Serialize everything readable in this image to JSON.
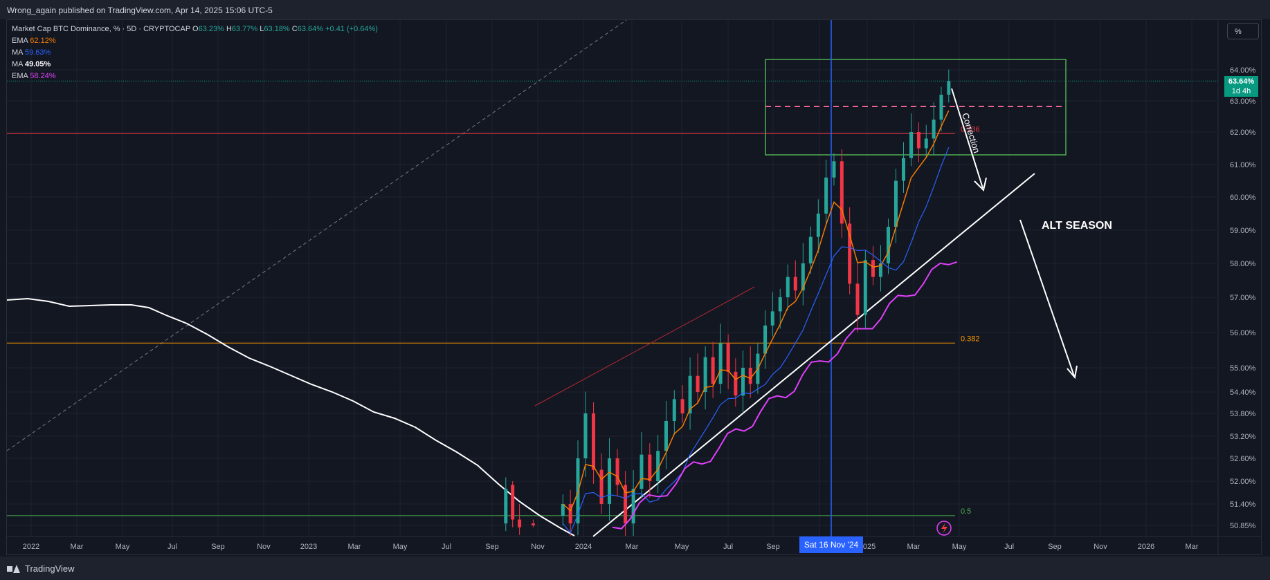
{
  "header": {
    "publisher_line": "Wrong_again published on TradingView.com, Apr 14, 2025 15:06 UTC-5"
  },
  "footer": {
    "brand": "TradingView"
  },
  "legend": {
    "symbol": "Market Cap BTC Dominance, % · 5D · CRYPTOCAP",
    "ohlc": [
      {
        "k": "O",
        "v": "63.23%"
      },
      {
        "k": "H",
        "v": "63.77%"
      },
      {
        "k": "L",
        "v": "63.18%"
      },
      {
        "k": "C",
        "v": "63.64%"
      }
    ],
    "change": "+0.41 (+0.64%)",
    "indicators": [
      {
        "name": "EMA",
        "value": "62.12%",
        "color": "#f57c00"
      },
      {
        "name": "MA",
        "value": "59.63%",
        "color": "#2962ff"
      },
      {
        "name": "MA",
        "value": "49.05%",
        "color": "#ffffff"
      },
      {
        "name": "EMA",
        "value": "58.24%",
        "color": "#e040fb"
      }
    ]
  },
  "toolbar": {
    "scale_button": "%"
  },
  "price_badge": {
    "price": "63.64%",
    "countdown": "1d 4h"
  },
  "crosshair": {
    "date_label": "Sat 16 Nov '24"
  },
  "annotations": {
    "correction": "Correction",
    "alt_season": "ALT SEASON"
  },
  "colors": {
    "background": "#131722",
    "up": "#26a69a",
    "down": "#f23645",
    "ema_fast": "#f57c00",
    "ma_mid": "#2962ff",
    "ma_slow": "#ffffff",
    "ema_slow": "#e040fb",
    "box": "#4caf50",
    "fib_382": "#ff9800",
    "fib_5": "#4caf50",
    "fib_236": "#f23645",
    "crosshair": "#2962ff"
  },
  "chart_data": {
    "type": "candlestick",
    "title": "Market Cap BTC Dominance, % · 5D · CRYPTOCAP",
    "y_unit": "%",
    "y_ticks": [
      "64.00%",
      "63.00%",
      "62.00%",
      "61.00%",
      "60.00%",
      "59.00%",
      "58.00%",
      "57.00%",
      "56.00%",
      "55.00%",
      "54.40%",
      "53.80%",
      "53.20%",
      "52.60%",
      "52.00%",
      "51.40%",
      "50.85%"
    ],
    "x_ticks": [
      "2022",
      "Mar",
      "May",
      "Jul",
      "Sep",
      "Nov",
      "2023",
      "Mar",
      "May",
      "Jul",
      "Sep",
      "Nov",
      "2024",
      "Mar",
      "May",
      "Jul",
      "Sep",
      "Nov",
      "2025",
      "Mar",
      "May",
      "Jul",
      "Sep",
      "Nov",
      "2026",
      "Mar"
    ],
    "fib_levels": [
      {
        "label": "0.236",
        "value": 61.95
      },
      {
        "label": "0.382",
        "value": 55.7
      },
      {
        "label": "0.5",
        "value": 51.1
      }
    ],
    "last_close": 63.64,
    "ema_fast_last": 62.12,
    "ma_mid_last": 59.63,
    "ma_slow_last": 49.05,
    "ema_slow_last": 58.24,
    "closes_2023_2025": [
      51.4,
      50.9,
      52.6,
      53.8,
      52.3,
      51.4,
      52.6,
      51.9,
      50.9,
      51.8,
      52.7,
      52.0,
      52.8,
      53.6,
      54.2,
      53.8,
      54.8,
      54.4,
      55.3,
      54.6,
      55.7,
      54.9,
      54.3,
      55.0,
      54.6,
      55.4,
      56.2,
      56.6,
      57.0,
      57.6,
      57.2,
      58.0,
      58.8,
      59.5,
      60.6,
      61.1,
      59.2,
      57.4,
      56.5,
      58.1,
      57.6,
      58.0,
      59.1,
      60.5,
      61.2,
      62.0,
      61.5,
      61.8,
      62.4,
      63.2,
      63.64
    ]
  }
}
